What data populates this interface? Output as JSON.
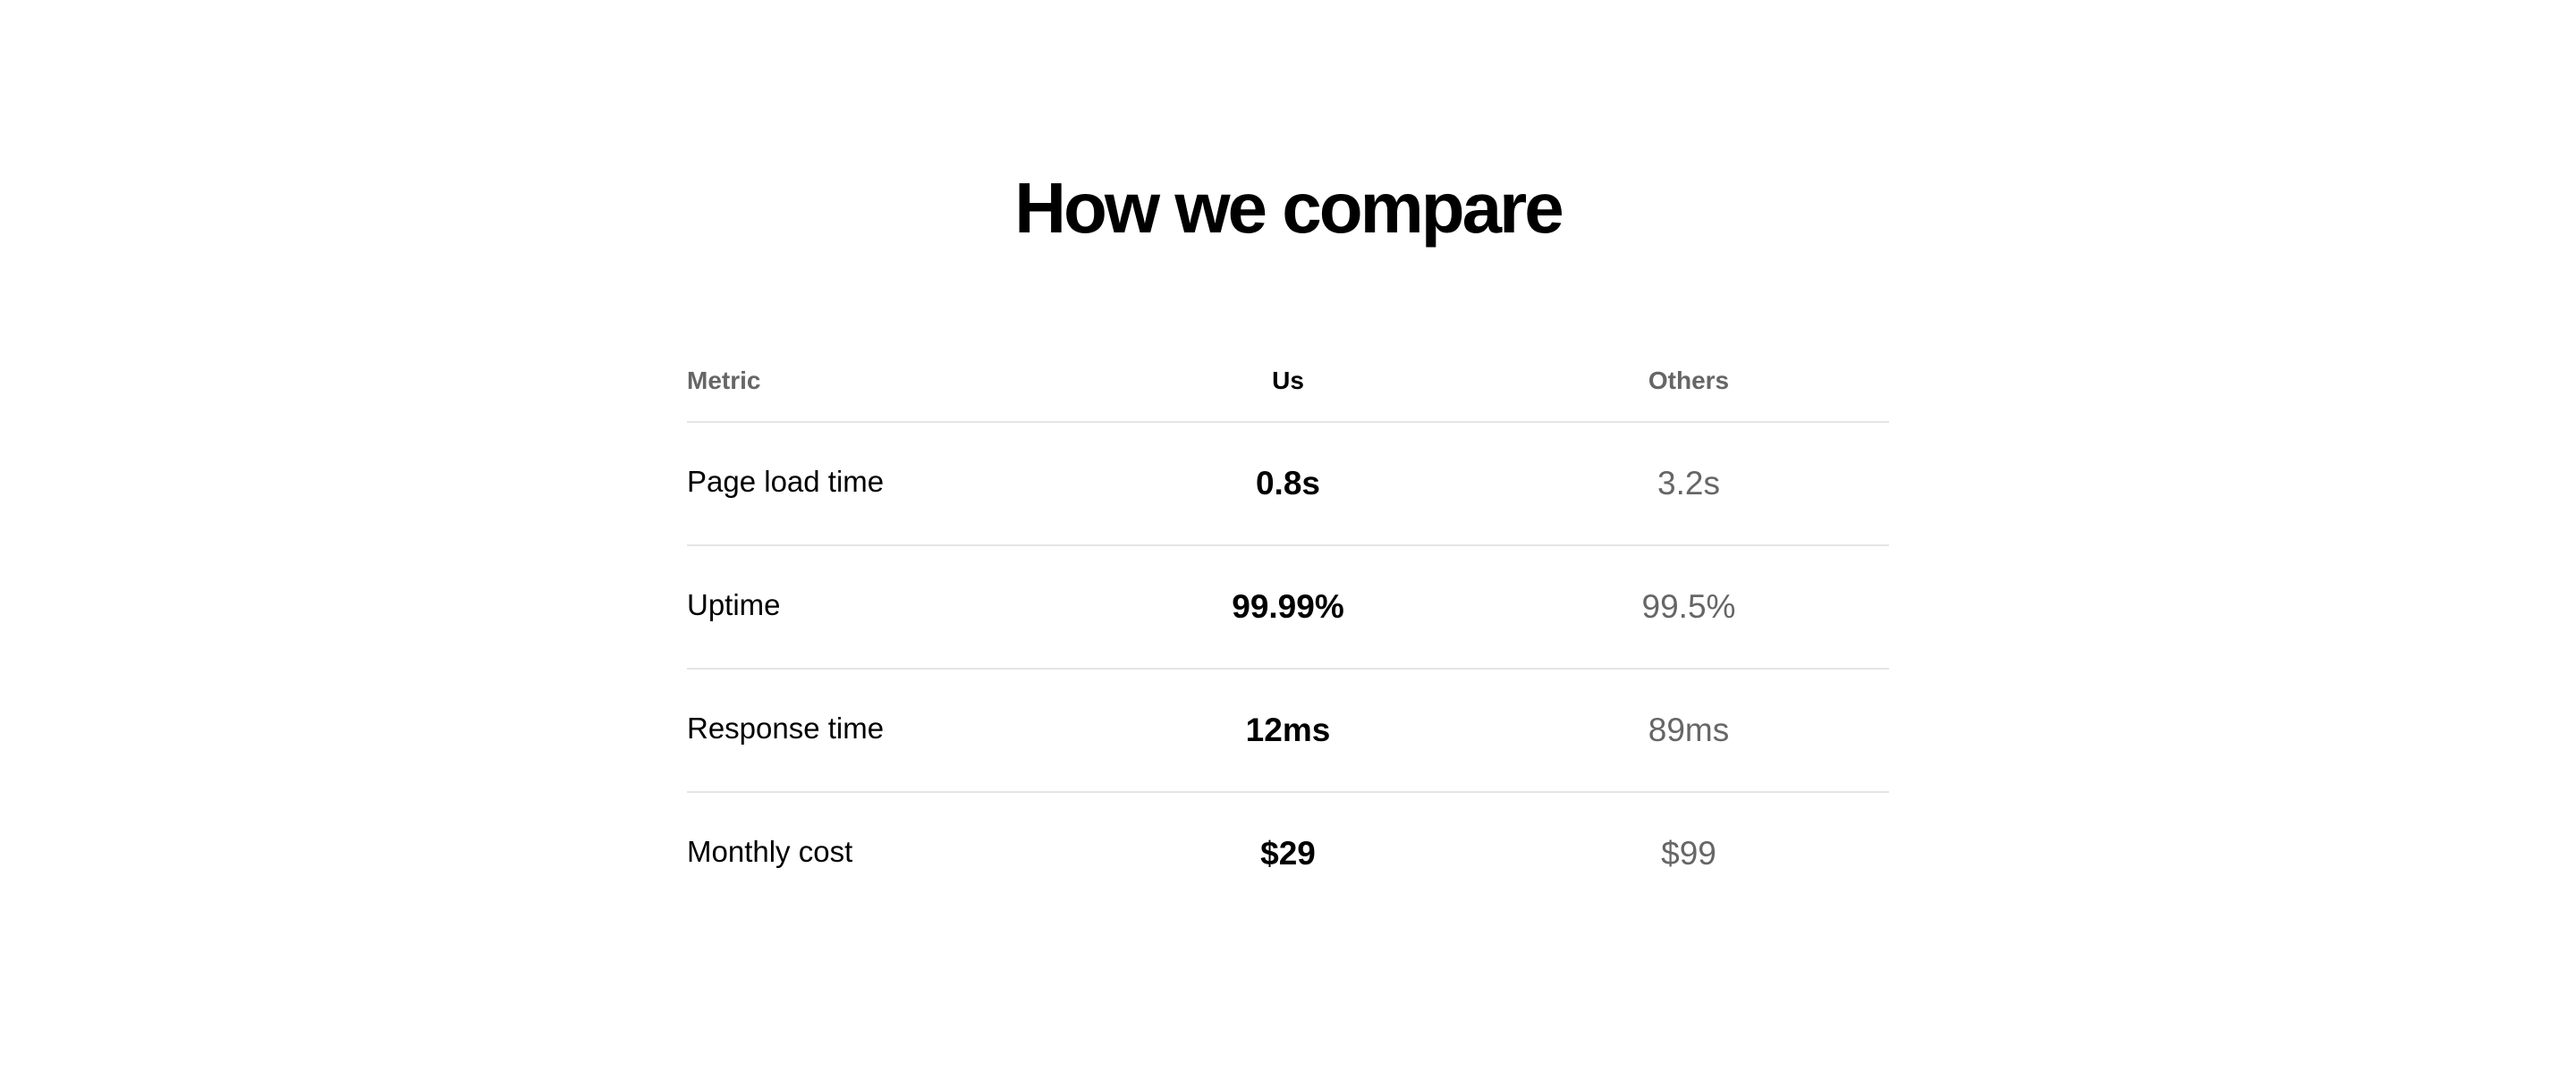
{
  "title": "How we compare",
  "table": {
    "headers": [
      "Metric",
      "Us",
      "Others"
    ],
    "rows": [
      {
        "metric": "Page load time",
        "us": "0.8s",
        "others": "3.2s"
      },
      {
        "metric": "Uptime",
        "us": "99.99%",
        "others": "99.5%"
      },
      {
        "metric": "Response time",
        "us": "12ms",
        "others": "89ms"
      },
      {
        "metric": "Monthly cost",
        "us": "$29",
        "others": "$99"
      }
    ]
  },
  "colors": {
    "text": "#000000",
    "muted": "#666666",
    "divider": "#e5e5e5"
  }
}
